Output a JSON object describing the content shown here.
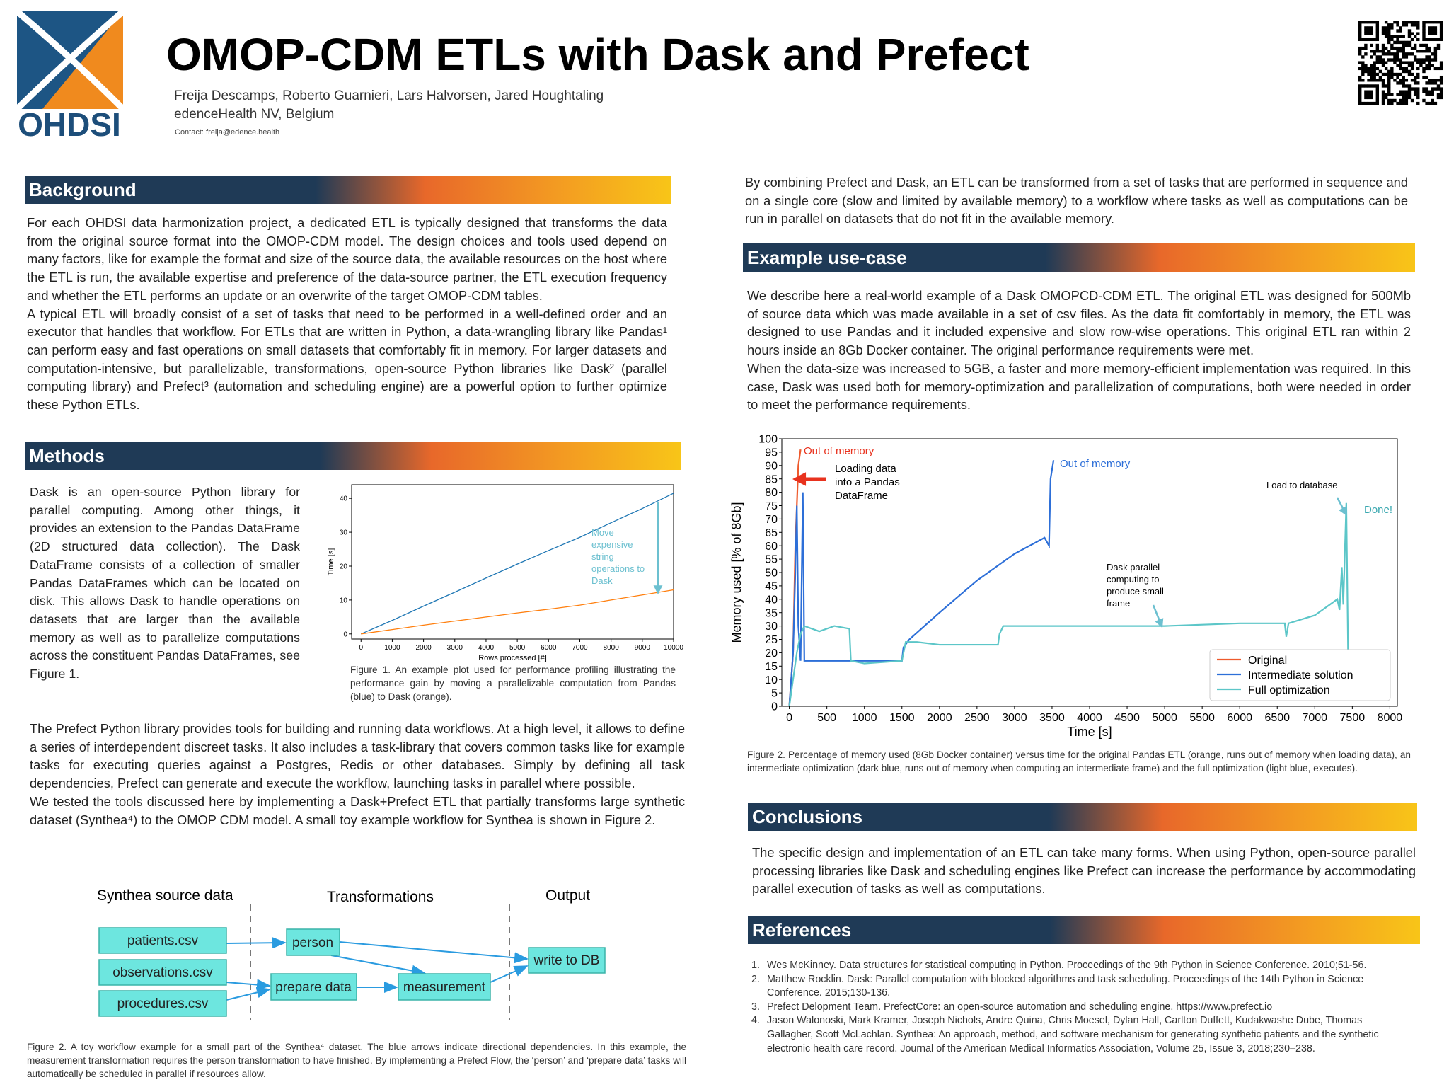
{
  "header": {
    "title": "OMOP-CDM ETLs with Dask and Prefect",
    "authors": "Freija Descamps, Roberto Guarnieri, Lars Halvorsen, Jared Houghtaling",
    "affiliation": "edenceHealth NV, Belgium",
    "contact": "Contact:  freija@edence.health",
    "logo_text": "OHDSI"
  },
  "background": {
    "heading": "Background",
    "paragraphs": [
      "For each OHDSI data harmonization project, a dedicated ETL is typically designed that transforms the data from the original source format into the OMOP-CDM model. The design choices and tools used depend on many factors, like for example the format and size of the source data, the available resources on the host where the ETL is run, the available expertise and preference of the data-source partner, the ETL execution frequency and whether the ETL performs an update or an overwrite of the target OMOP-CDM tables.",
      "A typical ETL will broadly consist of a set of tasks that need to be performed in a well-defined order and an executor that handles that workflow. For ETLs that are written in Python, a data-wrangling library like Pandas¹ can perform easy and fast operations on small datasets that comfortably fit in memory. For larger datasets and computation-intensive, but parallelizable, transformations, open-source Python libraries like Dask² (parallel computing library) and Prefect³ (automation and scheduling engine) are a powerful option to further optimize these Python ETLs."
    ]
  },
  "methods": {
    "heading": "Methods",
    "paragraphs": [
      "Dask is an open-source Python library for parallel computing. Among other things, it provides an extension to the Pandas DataFrame (2D structured data collection). The Dask DataFrame consists of a collection of smaller Pandas DataFrames which can be located on disk. This allows Dask to handle operations on datasets that are larger than the available memory as well as to parallelize computations across the constituent Pandas DataFrames, see Figure 1.",
      "The Prefect Python library provides tools for building and running data workflows. At a high level, it allows to define a series of interdependent discreet tasks. It also includes a task-library that covers common tasks like for example tasks for executing queries against a Postgres, Redis or other databases. Simply by defining all task dependencies, Prefect can generate and execute the workflow, launching tasks in parallel where possible.",
      "We tested the tools discussed here by implementing a Dask+Prefect ETL that partially transforms large synthetic dataset (Synthea⁴) to the OMOP CDM model. A small toy example workflow for Synthea is shown in Figure 2."
    ],
    "figure1_caption": "Figure 1. An example plot used for performance profiling illustrating the performance gain by moving a parallelizable computation from Pandas (blue) to Dask (orange)."
  },
  "workflow": {
    "column_titles": [
      "Synthea source data",
      "Transformations",
      "Output"
    ],
    "nodes": [
      "patients.csv",
      "observations.csv",
      "procedures.csv",
      "person",
      "prepare data",
      "measurement",
      "write to DB"
    ],
    "caption": "Figure 2. A toy workflow example for a small part of the Synthea⁴ dataset. The blue arrows indicate directional dependencies. In this example, the measurement transformation requires the person transformation to have finished. By implementing a Prefect Flow, the ‘person’ and ‘prepare data’ tasks will automatically be scheduled in parallel if resources allow."
  },
  "intro": {
    "paragraphs": [
      "By combining Prefect and Dask, an ETL can be transformed from a set of tasks that are performed in sequence and on a single core (slow and limited by available memory) to a workflow where tasks as well as computations can be run in parallel on datasets that do not fit in the available memory."
    ]
  },
  "use_case": {
    "heading": "Example use-case",
    "paragraphs": [
      "We describe here a real-world example of a Dask OMOPCD-CDM ETL. The original ETL was designed for 500Mb of source data which was made available in a set of csv files. As the data fit comfortably in memory, the ETL was designed to use Pandas and it included expensive and slow row-wise operations.  This original ETL ran within 2 hours inside an 8Gb Docker container. The original performance requirements were met.",
      "When the data-size was increased to 5GB, a faster and more memory-efficient implementation was required.  In this case, Dask was used both for memory-optimization and parallelization of computations, both were needed in order to meet the performance requirements."
    ],
    "figure2_caption": "Figure 2. Percentage of memory used (8Gb Docker container) versus time for the original Pandas ETL (orange, runs out of memory when loading data), an intermediate optimization (dark blue, runs out of memory when computing an intermediate frame) and the full optimization (light blue, executes)."
  },
  "conclusions": {
    "heading": "Conclusions",
    "paragraphs": [
      "The specific design and implementation of an ETL can take many forms. When using Python, open-source parallel processing libraries like Dask and scheduling engines like Prefect can increase the performance by accommodating parallel execution of tasks as well as computations."
    ]
  },
  "references": {
    "heading": "References",
    "items": [
      {
        "number": "1.",
        "text": "Wes McKinney. Data structures for statistical computing in Python. Proceedings of the 9th Python in Science Conference. 2010;51-56."
      },
      {
        "number": "2.",
        "text": "Matthew Rocklin. Dask: Parallel computation with blocked algorithms and task scheduling. Proceedings of the 14th Python in Science Conference. 2015;130-136."
      },
      {
        "number": "3.",
        "text": "Prefect Delopment Team. PrefectCore: an open-source automation and scheduling engine. https://www.prefect.io"
      },
      {
        "number": "4.",
        "text": "Jason Walonoski, Mark Kramer, Joseph Nichols, Andre Quina, Chris Moesel, Dylan Hall, Carlton Duffett, Kudakwashe Dube, Thomas Gallagher, Scott McLachlan. Synthea: An approach, method, and software mechanism for generating synthetic patients and the synthetic electronic health care record. Journal of the American Medical Informatics Association, Volume 25, Issue 3, 2018;230–238."
      }
    ]
  },
  "chart_data": [
    {
      "type": "line",
      "x_label": "Rows processed [#]",
      "y_label": "Time [s]",
      "x": [
        0,
        1000,
        2000,
        3000,
        4000,
        5000,
        6000,
        7000,
        8000,
        9000,
        10000
      ],
      "series": [
        {
          "color": "#1f77b4",
          "values": [
            0,
            4,
            8.2,
            12.3,
            16.5,
            20.6,
            24.6,
            28.5,
            32.8,
            37,
            41.5
          ]
        },
        {
          "color": "#ff7f0e",
          "values": [
            0,
            1.3,
            2.6,
            3.8,
            5,
            6.2,
            7.3,
            8.5,
            10,
            11.5,
            13
          ]
        }
      ],
      "xlim": [
        -300,
        10000
      ],
      "ylim": [
        -1.5,
        44
      ],
      "xticks": [
        0,
        1000,
        2000,
        3000,
        4000,
        5000,
        6000,
        7000,
        8000,
        9000,
        10000
      ],
      "yticks": [
        0,
        10,
        20,
        30,
        40
      ],
      "annotations": [
        {
          "text": [
            "Move",
            "expensive",
            "string",
            "operations to",
            "Dask"
          ],
          "color": "#6cc0d0"
        }
      ]
    },
    {
      "type": "line",
      "x_label": "Time [s]",
      "y_label": "Memory used [% of 8Gb]",
      "legend": "lower right",
      "series": [
        {
          "name": "Original",
          "color": "#ee5a2c",
          "x": [
            0,
            50,
            80,
            100,
            120,
            150
          ],
          "values": [
            0,
            20,
            60,
            75,
            90,
            96
          ]
        },
        {
          "name": "Intermediate solution",
          "color": "#2d6fd8",
          "x": [
            0,
            50,
            80,
            100,
            120,
            150,
            180,
            200,
            800,
            1000,
            1500,
            1520,
            1600,
            2000,
            2500,
            3000,
            3400,
            3460,
            3480,
            3520
          ],
          "values": [
            0,
            20,
            50,
            75,
            30,
            17,
            80,
            17,
            17,
            17,
            17,
            22,
            25,
            35,
            47,
            57,
            63,
            60,
            85,
            92
          ]
        },
        {
          "name": "Full optimization",
          "color": "#5cc6c8",
          "x": [
            0,
            100,
            150,
            200,
            400,
            600,
            800,
            820,
            1000,
            1500,
            1550,
            1700,
            2000,
            2500,
            2780,
            2800,
            2850,
            3500,
            4000,
            5000,
            6000,
            6600,
            6620,
            6650,
            7000,
            7300,
            7330,
            7360,
            7380,
            7420,
            7450
          ],
          "values": [
            0,
            20,
            27,
            30,
            28,
            30,
            29,
            17,
            16,
            17,
            24,
            24,
            23,
            23,
            23,
            27,
            30,
            30,
            30,
            30,
            31,
            31,
            26,
            31,
            34,
            40,
            36,
            52,
            38,
            76,
            5
          ]
        }
      ],
      "xlim": [
        -100,
        8100
      ],
      "ylim": [
        0,
        100
      ],
      "xticks": [
        0,
        500,
        1000,
        1500,
        2000,
        2500,
        3000,
        3500,
        4000,
        4500,
        5000,
        5500,
        6000,
        6500,
        7000,
        7500,
        8000
      ],
      "yticks": [
        0,
        5,
        10,
        15,
        20,
        25,
        30,
        35,
        40,
        45,
        50,
        55,
        60,
        65,
        70,
        75,
        80,
        85,
        90,
        95,
        100
      ],
      "annotations": [
        {
          "text": [
            "Out of memory"
          ],
          "color": "#e8321e"
        },
        {
          "text": [
            "Loading data",
            "into a Pandas",
            "DataFrame"
          ],
          "color": "#000000"
        },
        {
          "text": [
            "Out of memory"
          ],
          "color": "#2d6fd8"
        },
        {
          "text": [
            "Load to database"
          ],
          "color": "#000000"
        },
        {
          "text": [
            "Done!"
          ],
          "color": "#3aa8b0"
        },
        {
          "text": [
            "Dask parallel",
            "computing to",
            "produce small",
            "frame"
          ],
          "color": "#000000"
        }
      ]
    }
  ]
}
